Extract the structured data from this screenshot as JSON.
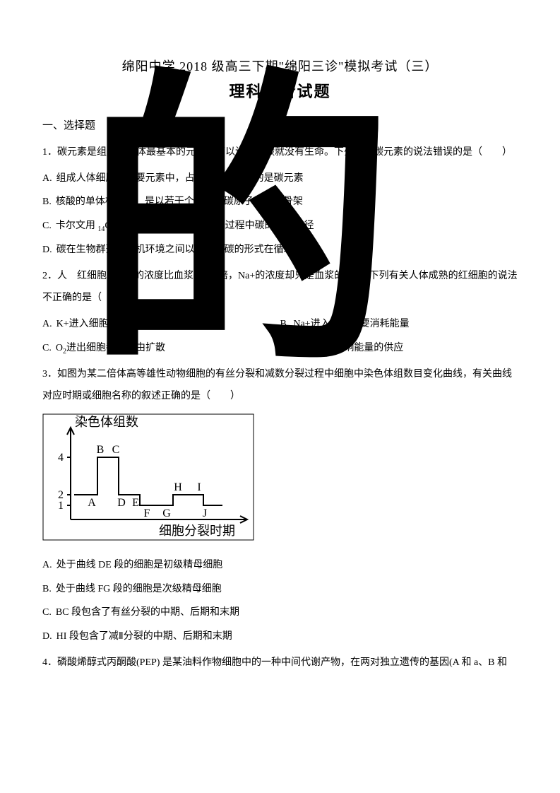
{
  "watermark": "的",
  "title_main": "绵阳中学 2018 级高三下期\"绵阳三诊\"模拟考试（三）",
  "title_sub": "理科综合试题",
  "section1": "一、选择题",
  "q1": {
    "num": "1．",
    "stem": "碳元素是组成生物体最基本的元素，可以说没有碳就没有生命。下列有关碳元素的说法错误的是（　　）",
    "A_letter": "A.",
    "A_text": "组成人体细胞的主要元素中，占细胞鲜重最多的是碳元素",
    "B_letter": "B.",
    "B_text_pre": "核酸的单体核苷酸，是以若干个相连的碳原子为基本骨架",
    "C_letter": "C.",
    "C_text_pre": "卡尔文用 ",
    "C_iso": "14",
    "C_text_mid": "C 标记的 CO",
    "C_sub2": "2",
    "C_text_post": " 探明了暗反应过程中碳的转移途径",
    "D_letter": "D.",
    "D_text": "碳在生物群落和无机环境之间以二氧化碳的形式在循环"
  },
  "q2": {
    "num": "2．",
    "stem": "人　红细胞中 K+ 的浓度比血浆高 30 倍，Na+的浓度却只是血浆的 1/6。下列有关人体成熟的红细胞的说法不正确的是（　　）",
    "A_letter": "A.",
    "A_text": "K+进入细胞需要消耗能量",
    "B_letter": "B.",
    "B_text": "Na+进入细胞需要消耗能量",
    "C_letter": "C.",
    "C_text_pre": "O",
    "C_sub": "2",
    "C_text_post": "进出细胞都是自由扩散",
    "D_letter": "D.",
    "D_text_pre": "O",
    "D_sub": "2",
    "D_text_post": "的多少影响能量的供应"
  },
  "q3": {
    "num": "3．",
    "stem": "如图为某二倍体高等雄性动物细胞的有丝分裂和减数分裂过程中细胞中染色体组数目变化曲线，有关曲线对应时期或细胞名称的叙述正确的是（　　）",
    "A_letter": "A.",
    "A_text": "处于曲线 DE 段的细胞是初级精母细胞",
    "B_letter": "B.",
    "B_text": "处于曲线 FG 段的细胞是次级精母细胞",
    "C_letter": "C.",
    "C_text": "BC 段包含了有丝分裂的中期、后期和末期",
    "D_letter": "D.",
    "D_text": "HI 段包含了减Ⅱ分裂的中期、后期和末期"
  },
  "chart": {
    "y_label": "染色体组数",
    "x_label": "细胞分裂时期",
    "y_ticks": [
      "1",
      "2",
      "4"
    ],
    "pt_labels": [
      "A",
      "B",
      "C",
      "D",
      "E",
      "F",
      "G",
      "H",
      "I",
      "J"
    ],
    "stroke": "#000000",
    "bg": "#ffffff",
    "font_size": 18,
    "tick_font_size": 16,
    "line_width": 2
  },
  "q4": {
    "num": "4．",
    "stem": "磷酸烯醇式丙酮酸(PEP) 是某油料作物细胞中的一种中间代谢产物，在两对独立遗传的基因(A 和 a、B 和"
  }
}
